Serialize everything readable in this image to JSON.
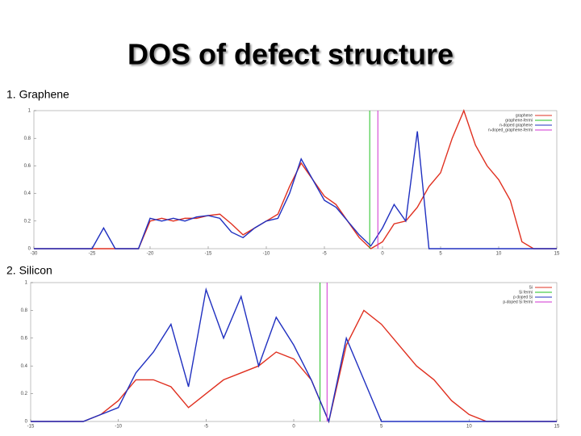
{
  "title": "DOS of defect structure",
  "sections": [
    "1. Graphene",
    "2. Silicon"
  ],
  "chart_data": [
    {
      "type": "line",
      "x": [
        -30,
        -29,
        -28,
        -27,
        -26,
        -25,
        -24,
        -23,
        -22,
        -21,
        -20,
        -19,
        -18,
        -17,
        -16,
        -15,
        -14,
        -13,
        -12,
        -11,
        -10,
        -9,
        -8,
        -7,
        -6,
        -5,
        -4,
        -3,
        -2,
        -1,
        0,
        1,
        2,
        3,
        4,
        5,
        6,
        7,
        8,
        9,
        10,
        11,
        12,
        13,
        14,
        15
      ],
      "series": [
        {
          "name": "graphene",
          "color": "#e03020",
          "values": [
            0,
            0,
            0,
            0,
            0,
            0,
            0,
            0,
            0,
            0,
            0.2,
            0.22,
            0.2,
            0.22,
            0.22,
            0.24,
            0.25,
            0.18,
            0.1,
            0.15,
            0.2,
            0.25,
            0.45,
            0.62,
            0.5,
            0.38,
            0.32,
            0.2,
            0.08,
            0,
            0.05,
            0.18,
            0.2,
            0.3,
            0.45,
            0.55,
            0.8,
            1,
            0.75,
            0.6,
            0.5,
            0.35,
            0.05,
            0,
            0,
            0
          ]
        },
        {
          "name": "graphene-fermi",
          "color": "#20c020",
          "fermi": -1.1
        },
        {
          "name": "n-doped graphene",
          "color": "#2030c0",
          "values": [
            0,
            0,
            0,
            0,
            0,
            0,
            0.15,
            0,
            0,
            0,
            0.22,
            0.2,
            0.22,
            0.2,
            0.23,
            0.24,
            0.22,
            0.12,
            0.08,
            0.15,
            0.2,
            0.22,
            0.4,
            0.65,
            0.5,
            0.35,
            0.3,
            0.2,
            0.1,
            0.02,
            0.15,
            0.32,
            0.2,
            0.85,
            0,
            0,
            0,
            0,
            0,
            0,
            0,
            0,
            0,
            0,
            0,
            0
          ]
        },
        {
          "name": "n-doped_graphene-fermi",
          "color": "#d030d0",
          "fermi": -0.4
        }
      ],
      "xlim": [
        -30,
        15
      ],
      "xticks": [
        -30,
        -25,
        -20,
        -15,
        -10,
        -5,
        0,
        5,
        10,
        15
      ],
      "ylim": [
        0,
        1
      ],
      "yticks": [
        0,
        0.2,
        0.4,
        0.6,
        0.8,
        1
      ],
      "legend": "top-right"
    },
    {
      "type": "line",
      "x": [
        -15,
        -14,
        -13,
        -12,
        -11,
        -10,
        -9,
        -8,
        -7,
        -6,
        -5,
        -4,
        -3,
        -2,
        -1,
        0,
        1,
        2,
        3,
        4,
        5,
        6,
        7,
        8,
        9,
        10,
        11,
        12,
        13,
        14,
        15
      ],
      "series": [
        {
          "name": "Si",
          "color": "#e03020",
          "values": [
            0,
            0,
            0,
            0,
            0.05,
            0.15,
            0.3,
            0.3,
            0.25,
            0.1,
            0.2,
            0.3,
            0.35,
            0.4,
            0.5,
            0.45,
            0.3,
            0,
            0.55,
            0.8,
            0.7,
            0.55,
            0.4,
            0.3,
            0.15,
            0.05,
            0,
            0,
            0,
            0,
            0
          ]
        },
        {
          "name": "Si fermi",
          "color": "#20c020",
          "fermi": 1.5
        },
        {
          "name": "p doped Si",
          "color": "#2030c0",
          "values": [
            0,
            0,
            0,
            0,
            0.05,
            0.1,
            0.35,
            0.5,
            0.7,
            0.25,
            0.95,
            0.6,
            0.9,
            0.4,
            0.75,
            0.55,
            0.3,
            0,
            0.6,
            0.3,
            0,
            0,
            0,
            0,
            0,
            0,
            0,
            0,
            0,
            0,
            0
          ]
        },
        {
          "name": "p-doped Si fermi",
          "color": "#d030d0",
          "fermi": 1.9
        }
      ],
      "xlim": [
        -15,
        15
      ],
      "xticks": [
        -15,
        -10,
        -5,
        0,
        5,
        10,
        15
      ],
      "ylim": [
        0,
        1
      ],
      "yticks": [
        0,
        0.2,
        0.4,
        0.6,
        0.8,
        1
      ],
      "legend": "top-right"
    }
  ]
}
